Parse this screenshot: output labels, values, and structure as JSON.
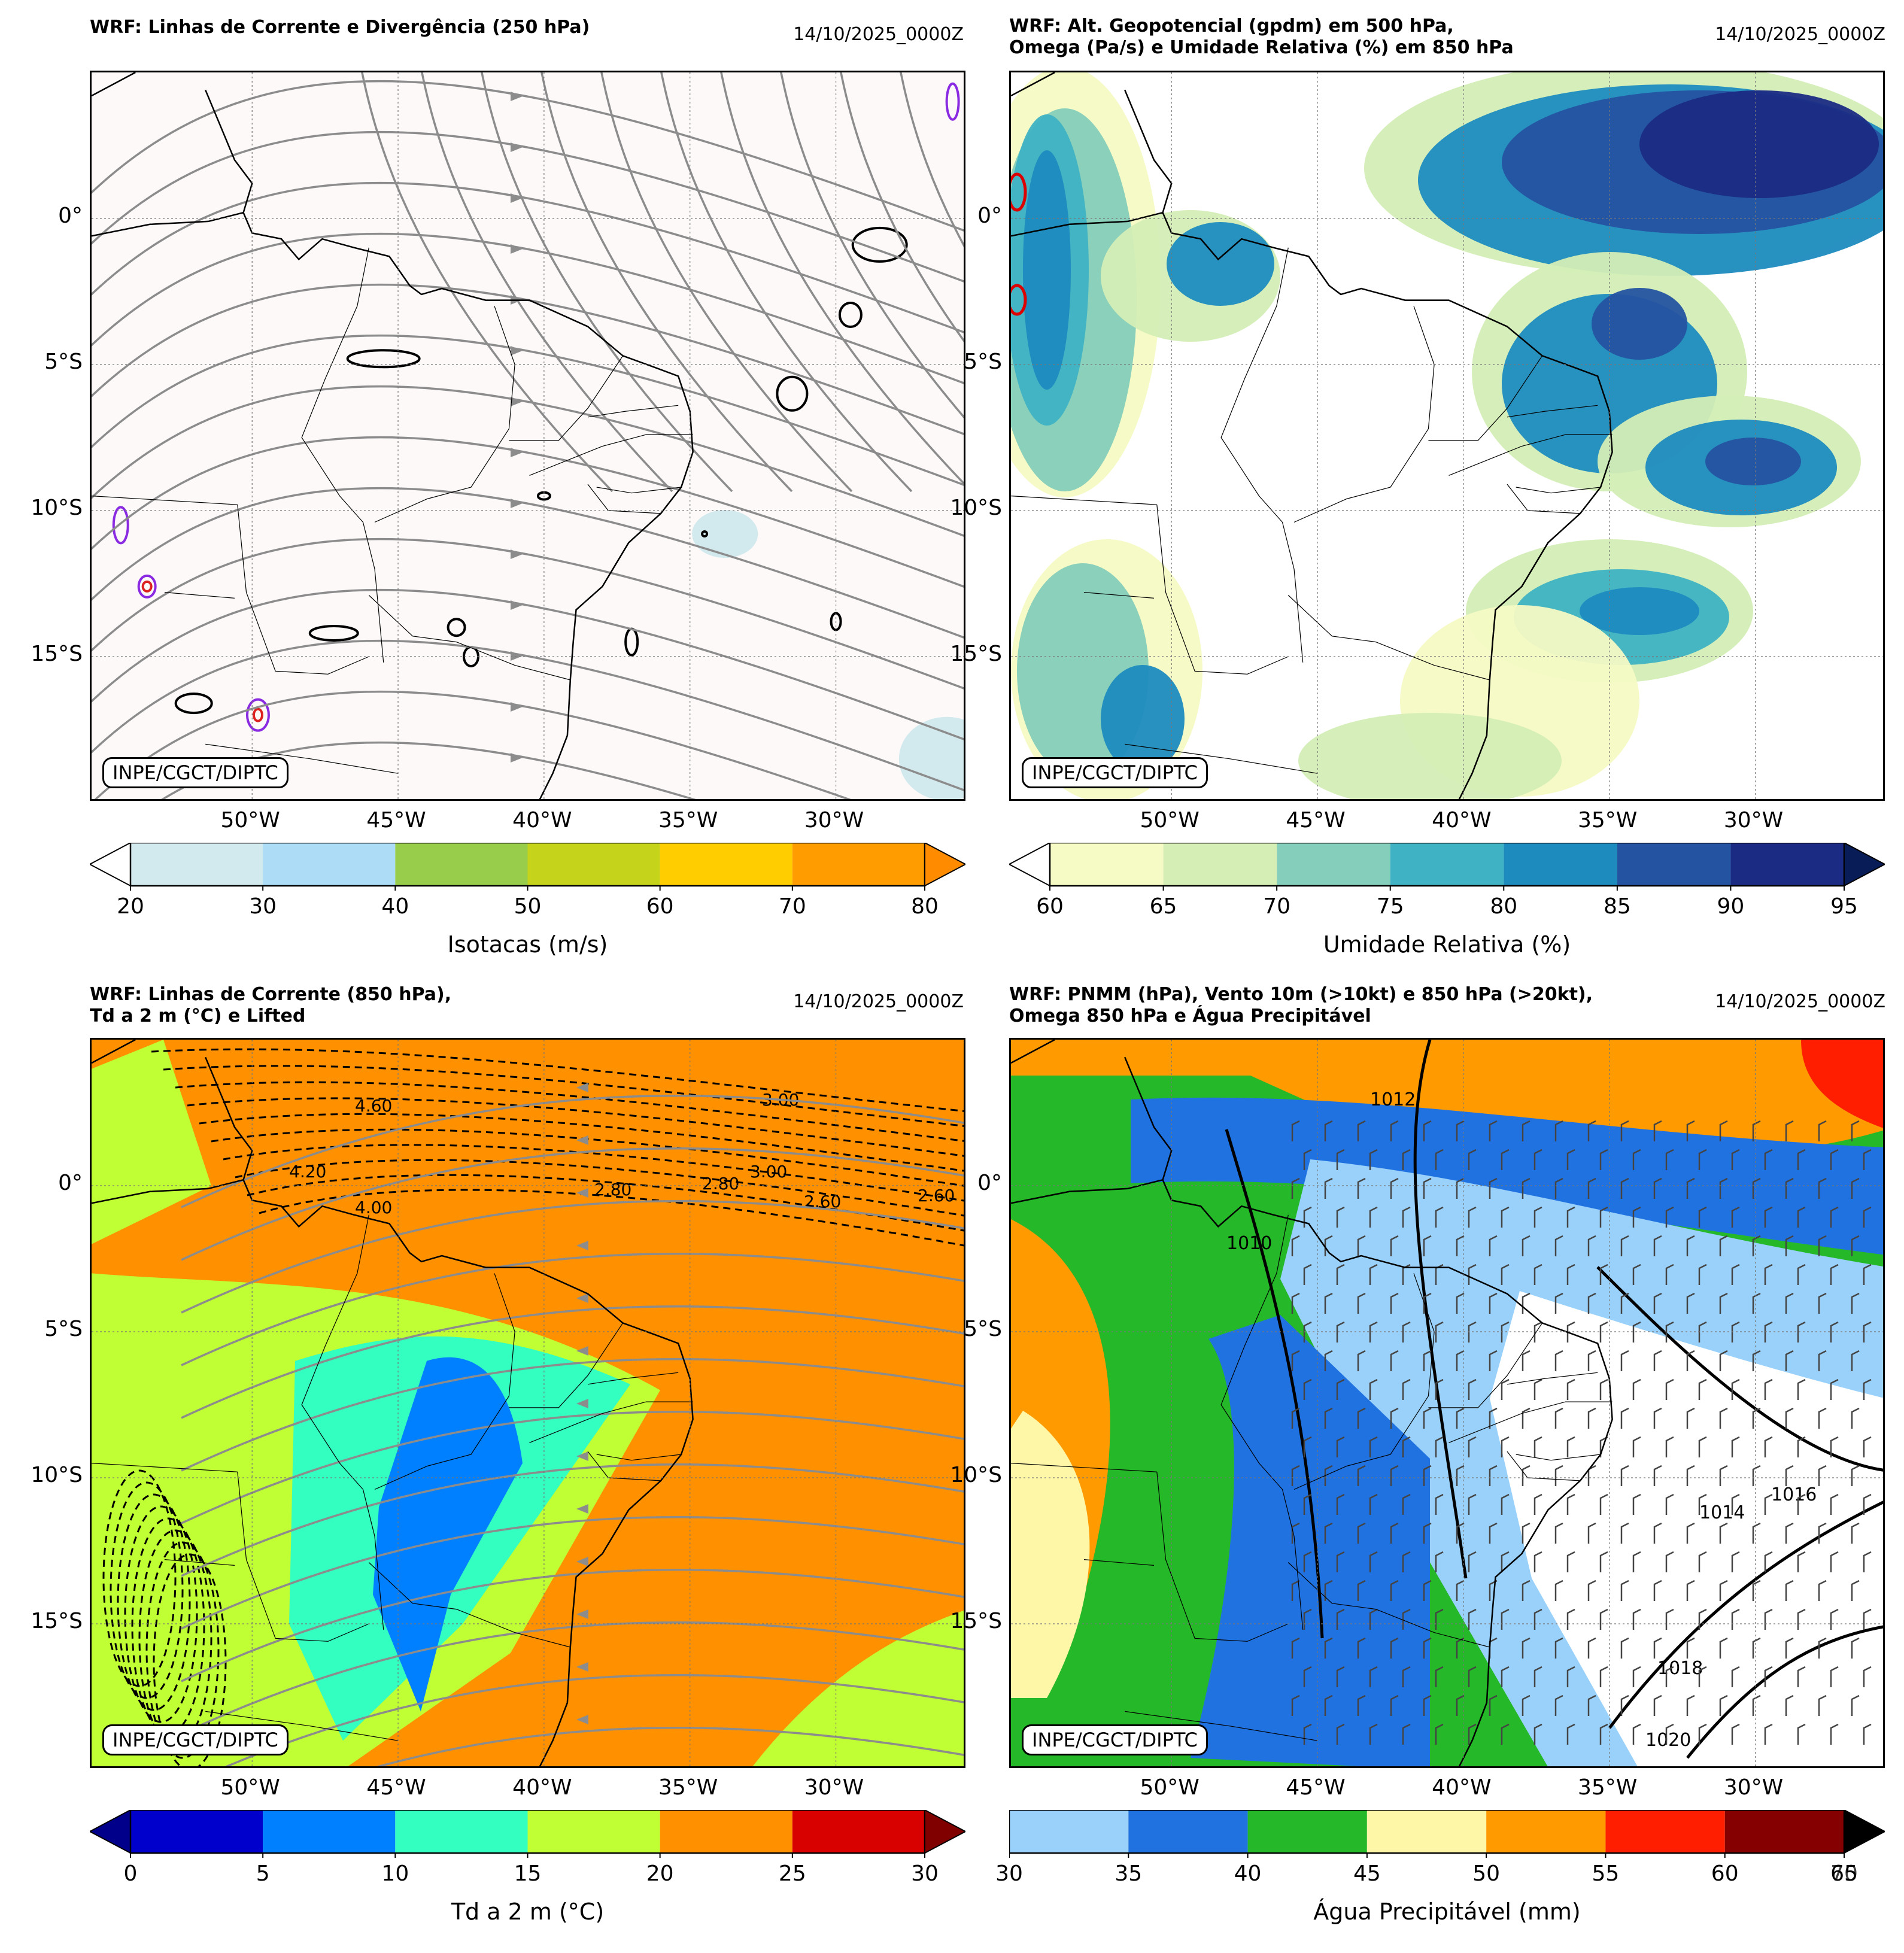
{
  "map_extent": {
    "lon": [
      -55.5,
      -25.5
    ],
    "lat": [
      -20.0,
      5.0
    ]
  },
  "lat_ticks": [
    {
      "value": 0,
      "label": "0°"
    },
    {
      "value": -5,
      "label": "5°S"
    },
    {
      "value": -10,
      "label": "10°S"
    },
    {
      "value": -15,
      "label": "15°S"
    }
  ],
  "lon_ticks": [
    {
      "value": -50,
      "label": "50°W"
    },
    {
      "value": -45,
      "label": "45°W"
    },
    {
      "value": -40,
      "label": "40°W"
    },
    {
      "value": -35,
      "label": "35°W"
    },
    {
      "value": -30,
      "label": "30°W"
    }
  ],
  "panels": [
    {
      "id": "p1",
      "title": "WRF: Linhas de Corrente e Divergência (250 hPa)",
      "date": "14/10/2025_0000Z",
      "credit": "INPE/CGCT/DIPTC",
      "background": "#fcf9f8",
      "colorbar": {
        "label": "Isotacas (m/s)",
        "ticks": [
          "20",
          "30",
          "40",
          "50",
          "60",
          "70",
          "80"
        ],
        "colors": [
          "#d2e9ee",
          "#acdcf6",
          "#98cd4b",
          "#c5d31b",
          "#ffcd00",
          "#ff9d00"
        ],
        "extend_min": "#ffffff",
        "extend_max": "#ff8c00"
      }
    },
    {
      "id": "p2",
      "title": "WRF: Alt. Geopotencial (gpdm) em 500 hPa,\nOmega (Pa/s) e Umidade Relativa (%) em 850 hPa",
      "date": "14/10/2025_0000Z",
      "credit": "INPE/CGCT/DIPTC",
      "background": "#ffffff",
      "colorbar": {
        "label": "Umidade Relativa (%)",
        "ticks": [
          "60",
          "65",
          "70",
          "75",
          "80",
          "85",
          "90",
          "95"
        ],
        "colors": [
          "#f6fac4",
          "#d4eeb6",
          "#84cebb",
          "#3fb2c3",
          "#1e8bbf",
          "#2453a1",
          "#1b2b84"
        ],
        "extend_min": "#ffffff",
        "extend_max": "#081d58"
      }
    },
    {
      "id": "p3",
      "title": "WRF: Linhas de Corrente (850 hPa),\nTd a 2 m (°C) e Lifted",
      "date": "14/10/2025_0000Z",
      "credit": "INPE/CGCT/DIPTC",
      "background": "#ff9100",
      "colorbar": {
        "label": "Td a 2 m (°C)",
        "ticks": [
          "0",
          "5",
          "10",
          "15",
          "20",
          "25",
          "30"
        ],
        "colors": [
          "#0000cc",
          "#0080ff",
          "#33ffc0",
          "#c0ff33",
          "#ff9100",
          "#d90000"
        ],
        "extend_min": "#00008b",
        "extend_max": "#800000"
      },
      "contour_labels": [
        "4.60",
        "4.20",
        "4.00",
        "3.00",
        "2.80",
        "2.80",
        "3.00",
        "2.60",
        "2.60"
      ]
    },
    {
      "id": "p4",
      "title": "WRF: PNMM (hPa), Vento 10m (>10kt) e 850 hPa (>20kt),\nOmega 850 hPa e Água Precipitável",
      "date": "14/10/2025_0000Z",
      "credit": "INPE/CGCT/DIPTC",
      "background": "#ffffff",
      "colorbar": {
        "label": "Água Precipitável (mm)",
        "ticks": [
          "30",
          "35",
          "40",
          "45",
          "50",
          "55",
          "60",
          "65"
        ],
        "end_tick_overlap": "70",
        "colors": [
          "#99d1fa",
          "#2172e1",
          "#25b828",
          "#fff7a8",
          "#ff9a00",
          "#ff1f00",
          "#850000"
        ],
        "extend_max": "#000000"
      },
      "isobar_labels": [
        "1012",
        "1010",
        "1014",
        "1016",
        "1018",
        "1020"
      ]
    }
  ]
}
